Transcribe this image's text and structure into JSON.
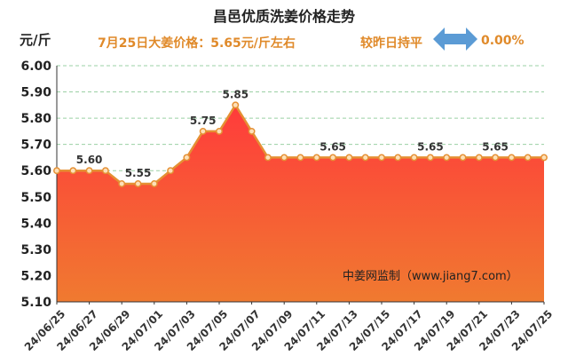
{
  "header": {
    "title": "昌邑优质洗姜价格走势",
    "unit": "元/斤",
    "today_price": "7月25日大姜价格：5.65元/斤左右",
    "compare_label": "较昨日持平",
    "change": "0.00%",
    "source": "中姜网监制（www.jiang7.com）",
    "arrow_icon": "double-arrow-icon",
    "arrow_color": "#5b9bd5"
  },
  "chart_data": {
    "type": "area",
    "title": "昌邑优质洗姜价格走势",
    "ylabel": "元/斤",
    "ylim": [
      5.1,
      6.0
    ],
    "yticks": [
      "5.10",
      "5.20",
      "5.30",
      "5.40",
      "5.50",
      "5.60",
      "5.70",
      "5.80",
      "5.90",
      "6.00"
    ],
    "x": [
      "24/06/25",
      "24/06/26",
      "24/06/27",
      "24/06/28",
      "24/06/29",
      "24/06/30",
      "24/07/01",
      "24/07/02",
      "24/07/03",
      "24/07/04",
      "24/07/05",
      "24/07/06",
      "24/07/07",
      "24/07/08",
      "24/07/09",
      "24/07/10",
      "24/07/11",
      "24/07/12",
      "24/07/13",
      "24/07/14",
      "24/07/15",
      "24/07/16",
      "24/07/17",
      "24/07/18",
      "24/07/19",
      "24/07/20",
      "24/07/21",
      "24/07/22",
      "24/07/23",
      "24/07/24",
      "24/07/25"
    ],
    "xticks": [
      "24/06/25",
      "24/06/27",
      "24/06/29",
      "24/07/01",
      "24/07/03",
      "24/07/05",
      "24/07/07",
      "24/07/09",
      "24/07/11",
      "24/07/13",
      "24/07/15",
      "24/07/17",
      "24/07/19",
      "24/07/21",
      "24/07/23",
      "24/07/25"
    ],
    "values": [
      5.6,
      5.6,
      5.6,
      5.6,
      5.55,
      5.55,
      5.55,
      5.6,
      5.65,
      5.75,
      5.75,
      5.85,
      5.75,
      5.65,
      5.65,
      5.65,
      5.65,
      5.65,
      5.65,
      5.65,
      5.65,
      5.65,
      5.65,
      5.65,
      5.65,
      5.65,
      5.65,
      5.65,
      5.65,
      5.65,
      5.65
    ],
    "data_labels": [
      {
        "x": "24/06/27",
        "text": "5.60"
      },
      {
        "x": "24/06/30",
        "text": "5.55"
      },
      {
        "x": "24/07/04",
        "text": "5.75"
      },
      {
        "x": "24/07/06",
        "text": "5.85"
      },
      {
        "x": "24/07/12",
        "text": "5.65"
      },
      {
        "x": "24/07/18",
        "text": "5.65"
      },
      {
        "x": "24/07/22",
        "text": "5.65"
      }
    ],
    "grid": true,
    "colors": {
      "line": "#e59034",
      "marker_fill": "#fde0b8",
      "area_top": "#ff3b3b",
      "area_bottom": "#f07a30",
      "grid": "#9bd0a4"
    }
  }
}
